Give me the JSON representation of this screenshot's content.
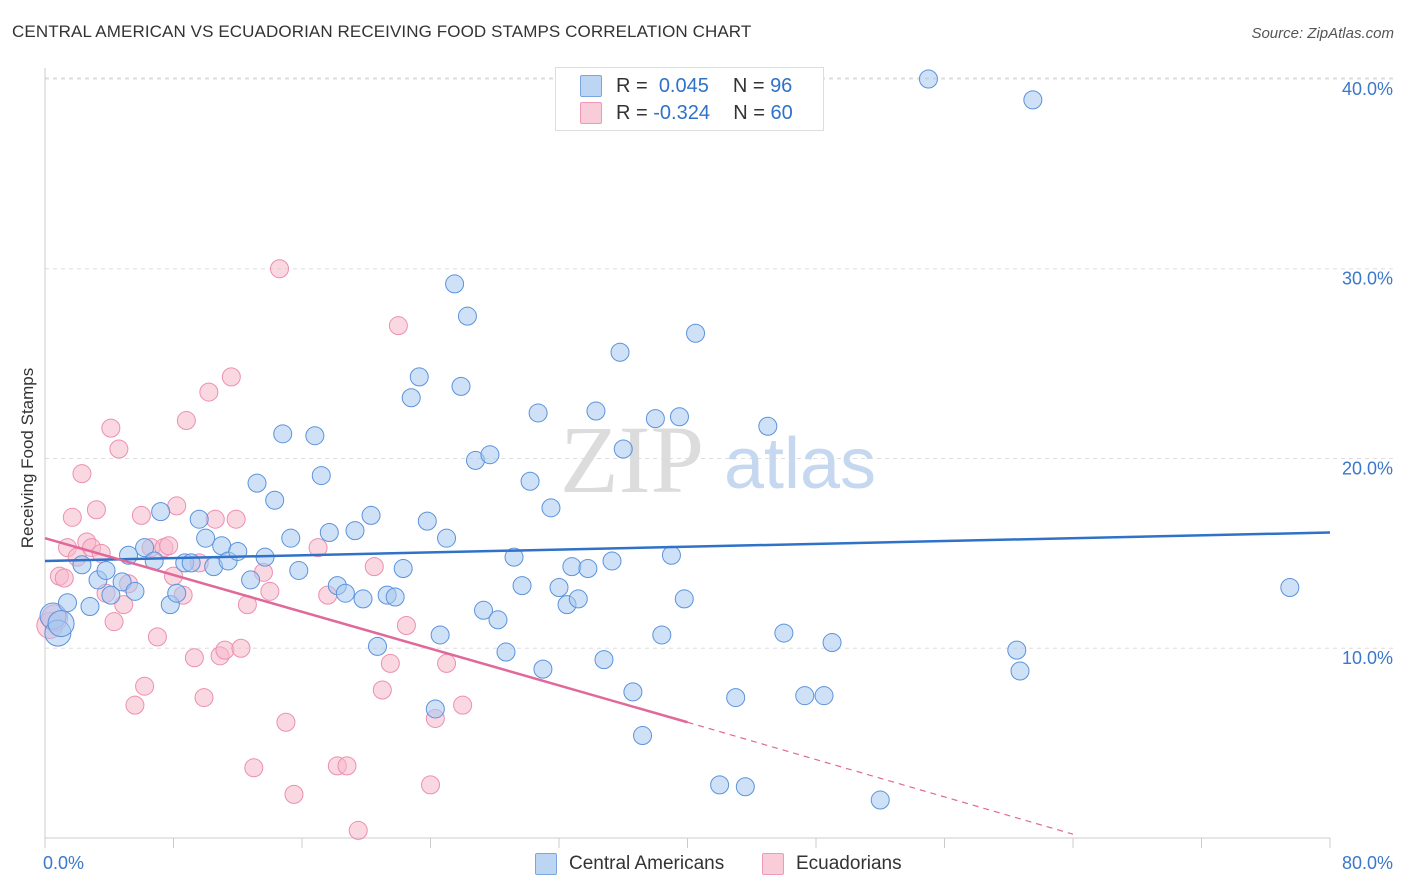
{
  "title": "CENTRAL AMERICAN VS ECUADORIAN RECEIVING FOOD STAMPS CORRELATION CHART",
  "source": "Source: ZipAtlas.com",
  "watermark": {
    "zip": "ZIP",
    "atlas": "atlas"
  },
  "legend": {
    "rows": [
      {
        "r_label": "R =",
        "r_value": "0.045",
        "n_label": "N =",
        "n_value": "96",
        "color": "#a8c8f0"
      },
      {
        "r_label": "R =",
        "r_value": "-0.324",
        "n_label": "N =",
        "n_value": "60",
        "color": "#f6b8ca"
      }
    ]
  },
  "bottom_legend": [
    {
      "label": "Central Americans",
      "color": "#a8c8f0"
    },
    {
      "label": "Ecuadorians",
      "color": "#f6b8ca"
    }
  ],
  "chart_data": {
    "type": "scatter",
    "title": "CENTRAL AMERICAN VS ECUADORIAN RECEIVING FOOD STAMPS CORRELATION CHART",
    "xlabel": "",
    "ylabel": "Receiving Food Stamps",
    "xlim": [
      0,
      80
    ],
    "ylim": [
      0,
      41
    ],
    "x_tick_labels": [
      "0.0%",
      "80.0%"
    ],
    "y_ticks": [
      10,
      20,
      30,
      40
    ],
    "y_tick_labels": [
      "10.0%",
      "20.0%",
      "30.0%",
      "40.0%"
    ],
    "grid": true,
    "legend_position": "top-center",
    "series": [
      {
        "name": "Central Americans",
        "color": "#5b93dc",
        "fill": "#a8c8f0",
        "trend": {
          "x": [
            0,
            80
          ],
          "y": [
            14.6,
            16.1
          ],
          "color": "#2f72c8"
        },
        "points": [
          [
            0.5,
            11.7
          ],
          [
            0.8,
            10.8
          ],
          [
            1.0,
            11.3
          ],
          [
            1.4,
            12.4
          ],
          [
            2.3,
            14.4
          ],
          [
            2.8,
            12.2
          ],
          [
            3.3,
            13.6
          ],
          [
            3.8,
            14.1
          ],
          [
            4.1,
            12.8
          ],
          [
            4.8,
            13.5
          ],
          [
            5.2,
            14.9
          ],
          [
            5.6,
            13.0
          ],
          [
            6.2,
            15.3
          ],
          [
            6.8,
            14.6
          ],
          [
            7.2,
            17.2
          ],
          [
            7.8,
            12.3
          ],
          [
            8.2,
            12.9
          ],
          [
            8.7,
            14.5
          ],
          [
            9.1,
            14.5
          ],
          [
            9.6,
            16.8
          ],
          [
            10.0,
            15.8
          ],
          [
            10.5,
            14.3
          ],
          [
            11.0,
            15.4
          ],
          [
            11.4,
            14.6
          ],
          [
            12.0,
            15.1
          ],
          [
            12.8,
            13.6
          ],
          [
            13.2,
            18.7
          ],
          [
            13.7,
            14.8
          ],
          [
            14.3,
            17.8
          ],
          [
            14.8,
            21.3
          ],
          [
            15.3,
            15.8
          ],
          [
            15.8,
            14.1
          ],
          [
            16.8,
            21.2
          ],
          [
            17.2,
            19.1
          ],
          [
            17.7,
            16.1
          ],
          [
            18.2,
            13.3
          ],
          [
            18.7,
            12.9
          ],
          [
            19.3,
            16.2
          ],
          [
            19.8,
            12.6
          ],
          [
            20.3,
            17.0
          ],
          [
            20.7,
            10.1
          ],
          [
            21.3,
            12.8
          ],
          [
            21.8,
            12.7
          ],
          [
            22.3,
            14.2
          ],
          [
            22.8,
            23.2
          ],
          [
            23.3,
            24.3
          ],
          [
            23.8,
            16.7
          ],
          [
            24.3,
            6.8
          ],
          [
            24.6,
            10.7
          ],
          [
            25.0,
            15.8
          ],
          [
            25.5,
            29.2
          ],
          [
            25.9,
            23.8
          ],
          [
            26.3,
            27.5
          ],
          [
            26.8,
            19.9
          ],
          [
            27.3,
            12.0
          ],
          [
            27.7,
            20.2
          ],
          [
            28.2,
            11.5
          ],
          [
            28.7,
            9.8
          ],
          [
            29.2,
            14.8
          ],
          [
            29.7,
            13.3
          ],
          [
            30.2,
            18.8
          ],
          [
            30.7,
            22.4
          ],
          [
            31.0,
            8.9
          ],
          [
            31.5,
            17.4
          ],
          [
            32.0,
            13.2
          ],
          [
            32.5,
            12.3
          ],
          [
            32.8,
            14.3
          ],
          [
            33.2,
            12.6
          ],
          [
            33.8,
            14.2
          ],
          [
            34.3,
            22.5
          ],
          [
            34.8,
            9.4
          ],
          [
            35.3,
            14.6
          ],
          [
            35.8,
            25.6
          ],
          [
            36.0,
            20.5
          ],
          [
            36.6,
            7.7
          ],
          [
            37.2,
            5.4
          ],
          [
            38.0,
            22.1
          ],
          [
            38.4,
            10.7
          ],
          [
            39.0,
            14.9
          ],
          [
            39.5,
            22.2
          ],
          [
            39.8,
            12.6
          ],
          [
            40.5,
            26.6
          ],
          [
            42.0,
            2.8
          ],
          [
            43.0,
            7.4
          ],
          [
            43.6,
            2.7
          ],
          [
            45.0,
            21.7
          ],
          [
            46.0,
            10.8
          ],
          [
            47.3,
            7.5
          ],
          [
            48.5,
            7.5
          ],
          [
            49.0,
            10.3
          ],
          [
            52.0,
            2.0
          ],
          [
            55.0,
            40.0
          ],
          [
            60.5,
            9.9
          ],
          [
            60.7,
            8.8
          ],
          [
            61.5,
            38.9
          ],
          [
            77.5,
            13.2
          ]
        ],
        "sizes_large": [
          [
            0.5,
            11.7
          ],
          [
            0.8,
            10.8
          ],
          [
            1.0,
            11.3
          ]
        ]
      },
      {
        "name": "Ecuadorians",
        "color": "#ec8fb0",
        "fill": "#f6b8ca",
        "trend": {
          "x": [
            0,
            40
          ],
          "y": [
            15.8,
            6.1
          ],
          "dashed_to": [
            64,
            0.2
          ],
          "color": "#e0699a"
        },
        "points": [
          [
            0.3,
            11.2
          ],
          [
            0.6,
            11.6
          ],
          [
            0.9,
            13.8
          ],
          [
            1.2,
            13.7
          ],
          [
            1.4,
            15.3
          ],
          [
            1.7,
            16.9
          ],
          [
            2.0,
            14.8
          ],
          [
            2.3,
            19.2
          ],
          [
            2.6,
            15.6
          ],
          [
            2.9,
            15.3
          ],
          [
            3.2,
            17.3
          ],
          [
            3.5,
            15.0
          ],
          [
            3.8,
            12.9
          ],
          [
            4.1,
            21.6
          ],
          [
            4.3,
            11.4
          ],
          [
            4.6,
            20.5
          ],
          [
            4.9,
            12.3
          ],
          [
            5.2,
            13.4
          ],
          [
            5.6,
            7.0
          ],
          [
            6.0,
            17.0
          ],
          [
            6.2,
            8.0
          ],
          [
            6.6,
            15.3
          ],
          [
            7.0,
            10.6
          ],
          [
            7.4,
            15.3
          ],
          [
            7.7,
            15.4
          ],
          [
            8.0,
            13.8
          ],
          [
            8.2,
            17.5
          ],
          [
            8.6,
            12.8
          ],
          [
            8.8,
            22.0
          ],
          [
            9.3,
            9.5
          ],
          [
            9.6,
            14.5
          ],
          [
            9.9,
            7.4
          ],
          [
            10.2,
            23.5
          ],
          [
            10.6,
            16.8
          ],
          [
            10.9,
            9.6
          ],
          [
            11.2,
            9.9
          ],
          [
            11.6,
            24.3
          ],
          [
            11.9,
            16.8
          ],
          [
            12.2,
            10.0
          ],
          [
            12.6,
            12.3
          ],
          [
            13.0,
            3.7
          ],
          [
            13.6,
            14.0
          ],
          [
            14.0,
            13.0
          ],
          [
            14.6,
            30.0
          ],
          [
            15.0,
            6.1
          ],
          [
            15.5,
            2.3
          ],
          [
            17.0,
            15.3
          ],
          [
            17.6,
            12.8
          ],
          [
            18.2,
            3.8
          ],
          [
            18.8,
            3.8
          ],
          [
            19.5,
            0.4
          ],
          [
            20.5,
            14.3
          ],
          [
            21.0,
            7.8
          ],
          [
            21.5,
            9.2
          ],
          [
            22.0,
            27.0
          ],
          [
            22.5,
            11.2
          ],
          [
            24.0,
            2.8
          ],
          [
            24.3,
            6.3
          ],
          [
            25.0,
            9.2
          ],
          [
            26.0,
            7.0
          ]
        ],
        "sizes_large": [
          [
            0.3,
            11.2
          ],
          [
            0.6,
            11.6
          ]
        ]
      }
    ]
  }
}
